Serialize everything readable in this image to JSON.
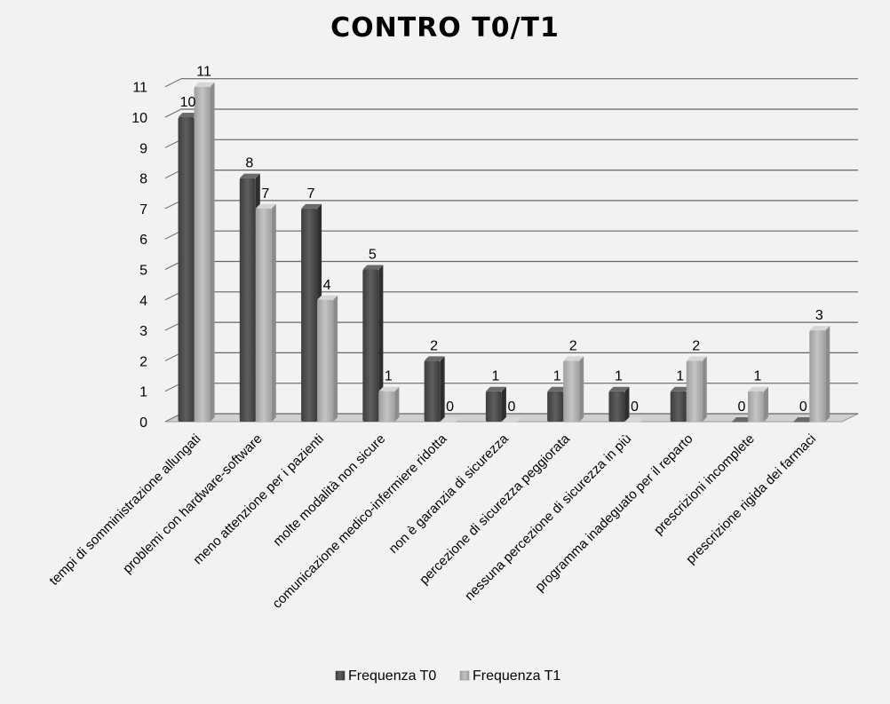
{
  "chart_data": {
    "type": "bar",
    "title": "CONTRO T0/T1",
    "xlabel": "",
    "ylabel": "",
    "ylim": [
      0,
      11
    ],
    "grid": true,
    "legend": "bottom",
    "categories": [
      "tempi di somministrazione allungati",
      "problemi con hardware-software",
      "meno attenzione per i pazienti",
      "molte modalità non sicure",
      "comunicazione medico-infermiere ridotta",
      "non è garanzia di sicurezza",
      "percezione di sicurezza peggiorata",
      "nessuna percezione di sicurezza in più",
      "programma inadeguato per il reparto",
      "prescrizioni incomplete",
      "prescrizione rigida dei farmaci"
    ],
    "series": [
      {
        "name": "Frequenza T0",
        "values": [
          10,
          8,
          7,
          5,
          2,
          1,
          1,
          1,
          1,
          0,
          0
        ],
        "color": "#555555"
      },
      {
        "name": "Frequenza T1",
        "values": [
          11,
          7,
          4,
          1,
          0,
          0,
          2,
          0,
          2,
          1,
          3
        ],
        "color": "#b3b3b3"
      }
    ],
    "yticks": [
      "0",
      "1",
      "2",
      "3",
      "4",
      "5",
      "6",
      "7",
      "8",
      "9",
      "10",
      "11"
    ]
  }
}
